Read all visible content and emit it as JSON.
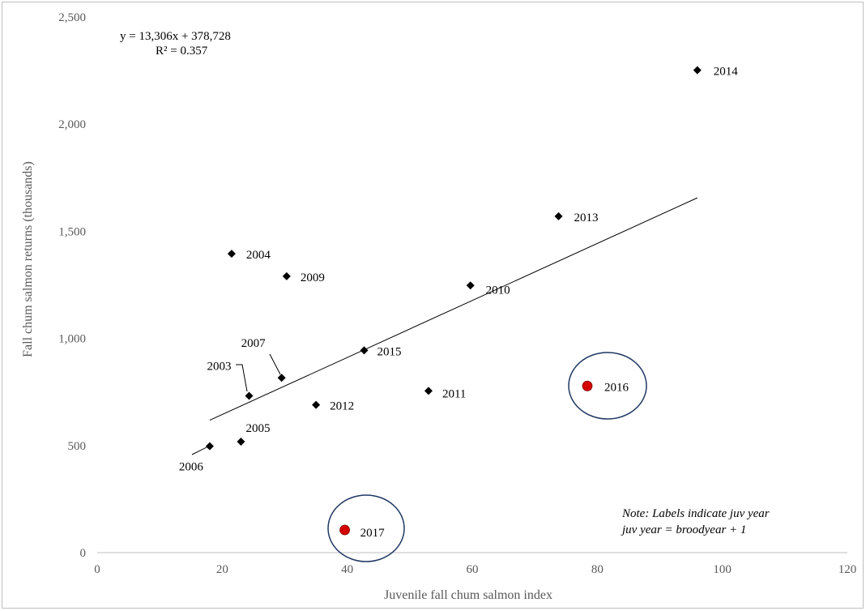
{
  "chart_data": {
    "type": "scatter",
    "title": "",
    "xlabel": "Juvenile  fall chum salmon index",
    "ylabel": "Fall chum salmon returns (thousands)",
    "xlim": [
      0,
      120
    ],
    "ylim": [
      0,
      2500
    ],
    "x_ticks": [
      "0",
      "20",
      "40",
      "60",
      "80",
      "100",
      "120"
    ],
    "y_ticks": [
      "0",
      "500",
      "1,000",
      "1,500",
      "2,000",
      "2,500"
    ],
    "grid": false,
    "points": [
      {
        "label": "2003",
        "x": 24.3,
        "y": 732,
        "color": "#000000"
      },
      {
        "label": "2004",
        "x": 21.5,
        "y": 1395,
        "color": "#000000"
      },
      {
        "label": "2005",
        "x": 23.0,
        "y": 518,
        "color": "#000000"
      },
      {
        "label": "2006",
        "x": 18.0,
        "y": 497,
        "color": "#000000"
      },
      {
        "label": "2007",
        "x": 29.5,
        "y": 816,
        "color": "#000000"
      },
      {
        "label": "2009",
        "x": 30.3,
        "y": 1290,
        "color": "#000000"
      },
      {
        "label": "2010",
        "x": 59.7,
        "y": 1247,
        "color": "#000000"
      },
      {
        "label": "2011",
        "x": 53.0,
        "y": 755,
        "color": "#000000"
      },
      {
        "label": "2012",
        "x": 35.0,
        "y": 690,
        "color": "#000000"
      },
      {
        "label": "2013",
        "x": 73.8,
        "y": 1570,
        "color": "#000000"
      },
      {
        "label": "2014",
        "x": 96.0,
        "y": 2252,
        "color": "#000000"
      },
      {
        "label": "2015",
        "x": 42.7,
        "y": 944,
        "color": "#000000"
      },
      {
        "label": "2016",
        "x": 78.4,
        "y": 778,
        "color": "#d40000",
        "highlight": true
      },
      {
        "label": "2017",
        "x": 39.6,
        "y": 106,
        "color": "#d40000",
        "highlight": true
      }
    ],
    "trendline": {
      "equation": "y = 13,306x  + 378,728",
      "r_squared": "R² = 0.357",
      "x_range": [
        18.0,
        96.0
      ],
      "slope": 13.306,
      "intercept": 378.728
    },
    "note_lines": [
      "Note: Labels indicate juv year",
      "juv year = broodyear + 1"
    ],
    "colors": {
      "marker": "#000000",
      "highlight": "#d40000",
      "circle": "#1f3864",
      "axis": "#bfbfbf",
      "text": "#595959"
    }
  }
}
